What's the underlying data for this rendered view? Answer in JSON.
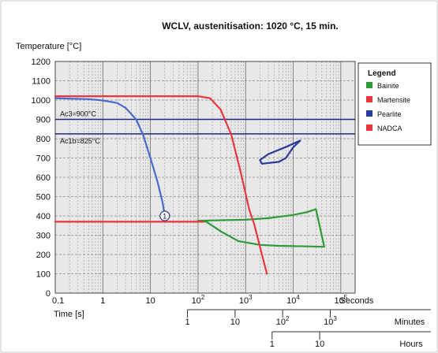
{
  "chart_data": {
    "type": "line",
    "title": "WCLV, austenitisation: 1020 °C, 15 min.",
    "ylabel": "Temperature [°C]",
    "xlabel": "Time [s]",
    "x_scale": "log",
    "xlim": [
      0.1,
      200000
    ],
    "ylim": [
      0,
      1200
    ],
    "y_ticks": [
      0,
      100,
      200,
      300,
      400,
      500,
      600,
      700,
      800,
      900,
      1000,
      1100,
      1200
    ],
    "x_ticks": [
      {
        "value": 0.1,
        "label": "0.1"
      },
      {
        "value": 1,
        "label": "1"
      },
      {
        "value": 10,
        "label": "10"
      },
      {
        "value": 100,
        "label": "10",
        "exp": "2"
      },
      {
        "value": 1000,
        "label": "10",
        "exp": "3"
      },
      {
        "value": 10000,
        "label": "10",
        "exp": "4"
      },
      {
        "value": 100000,
        "label": "10",
        "exp": "5"
      }
    ],
    "x_unit_label": "Seconds",
    "minutes_axis": {
      "unit": "Minutes",
      "ticks": [
        {
          "minutes": 1,
          "label": "1"
        },
        {
          "minutes": 10,
          "label": "10"
        },
        {
          "minutes": 100,
          "label": "10",
          "exp": "2"
        },
        {
          "minutes": 1000,
          "label": "10",
          "exp": "3"
        }
      ]
    },
    "hours_axis": {
      "unit": "Hours",
      "ticks": [
        {
          "hours": 1,
          "label": "1"
        },
        {
          "hours": 10,
          "label": "10"
        }
      ]
    },
    "reference_lines": [
      {
        "name": "Ac3=900°C",
        "y": 900
      },
      {
        "name": "Ac1b=825°C",
        "y": 825
      }
    ],
    "annotations": [
      {
        "text": "1",
        "x": 20,
        "y": 400
      }
    ],
    "legend": {
      "title": "Legend",
      "position": "top-right",
      "entries": [
        "Bainite",
        "Martensite",
        "Pearlite",
        "NADCA"
      ]
    },
    "series": [
      {
        "name": "Bainite",
        "color": "#2e9a3a",
        "closed": true,
        "points": [
          [
            100,
            375
          ],
          [
            1000,
            380
          ],
          [
            3000,
            388
          ],
          [
            10000,
            405
          ],
          [
            20000,
            420
          ],
          [
            30000,
            435
          ],
          [
            45000,
            240
          ],
          [
            20000,
            242
          ],
          [
            5000,
            245
          ],
          [
            2000,
            250
          ],
          [
            700,
            270
          ],
          [
            300,
            320
          ],
          [
            150,
            370
          ]
        ]
      },
      {
        "name": "Martensite",
        "color": "#e8373f",
        "points": [
          [
            0.1,
            370
          ],
          [
            1,
            370
          ],
          [
            10,
            370
          ],
          [
            100,
            370
          ],
          [
            130,
            370
          ]
        ]
      },
      {
        "name": "Pearlite",
        "color": "#2a3a9a",
        "closed": true,
        "points": [
          [
            7500,
            760
          ],
          [
            3000,
            720
          ],
          [
            2000,
            690
          ],
          [
            2200,
            670
          ],
          [
            5000,
            680
          ],
          [
            7000,
            700
          ],
          [
            10000,
            755
          ],
          [
            14000,
            790
          ],
          [
            7500,
            760
          ]
        ]
      },
      {
        "name": "NADCA",
        "color": "#e8373f",
        "points": [
          [
            0.1,
            1020
          ],
          [
            10,
            1020
          ],
          [
            100,
            1020
          ],
          [
            180,
            1010
          ],
          [
            300,
            950
          ],
          [
            500,
            820
          ],
          [
            800,
            620
          ],
          [
            1200,
            430
          ],
          [
            1500,
            360
          ],
          [
            2000,
            240
          ],
          [
            2800,
            100
          ]
        ]
      },
      {
        "name": "",
        "color": "#4a6ad0",
        "points": [
          [
            0.1,
            1010
          ],
          [
            0.5,
            1005
          ],
          [
            1,
            998
          ],
          [
            2,
            985
          ],
          [
            3,
            960
          ],
          [
            5,
            900
          ],
          [
            7,
            820
          ],
          [
            10,
            700
          ],
          [
            14,
            580
          ],
          [
            18,
            470
          ],
          [
            20,
            400
          ]
        ]
      }
    ]
  }
}
